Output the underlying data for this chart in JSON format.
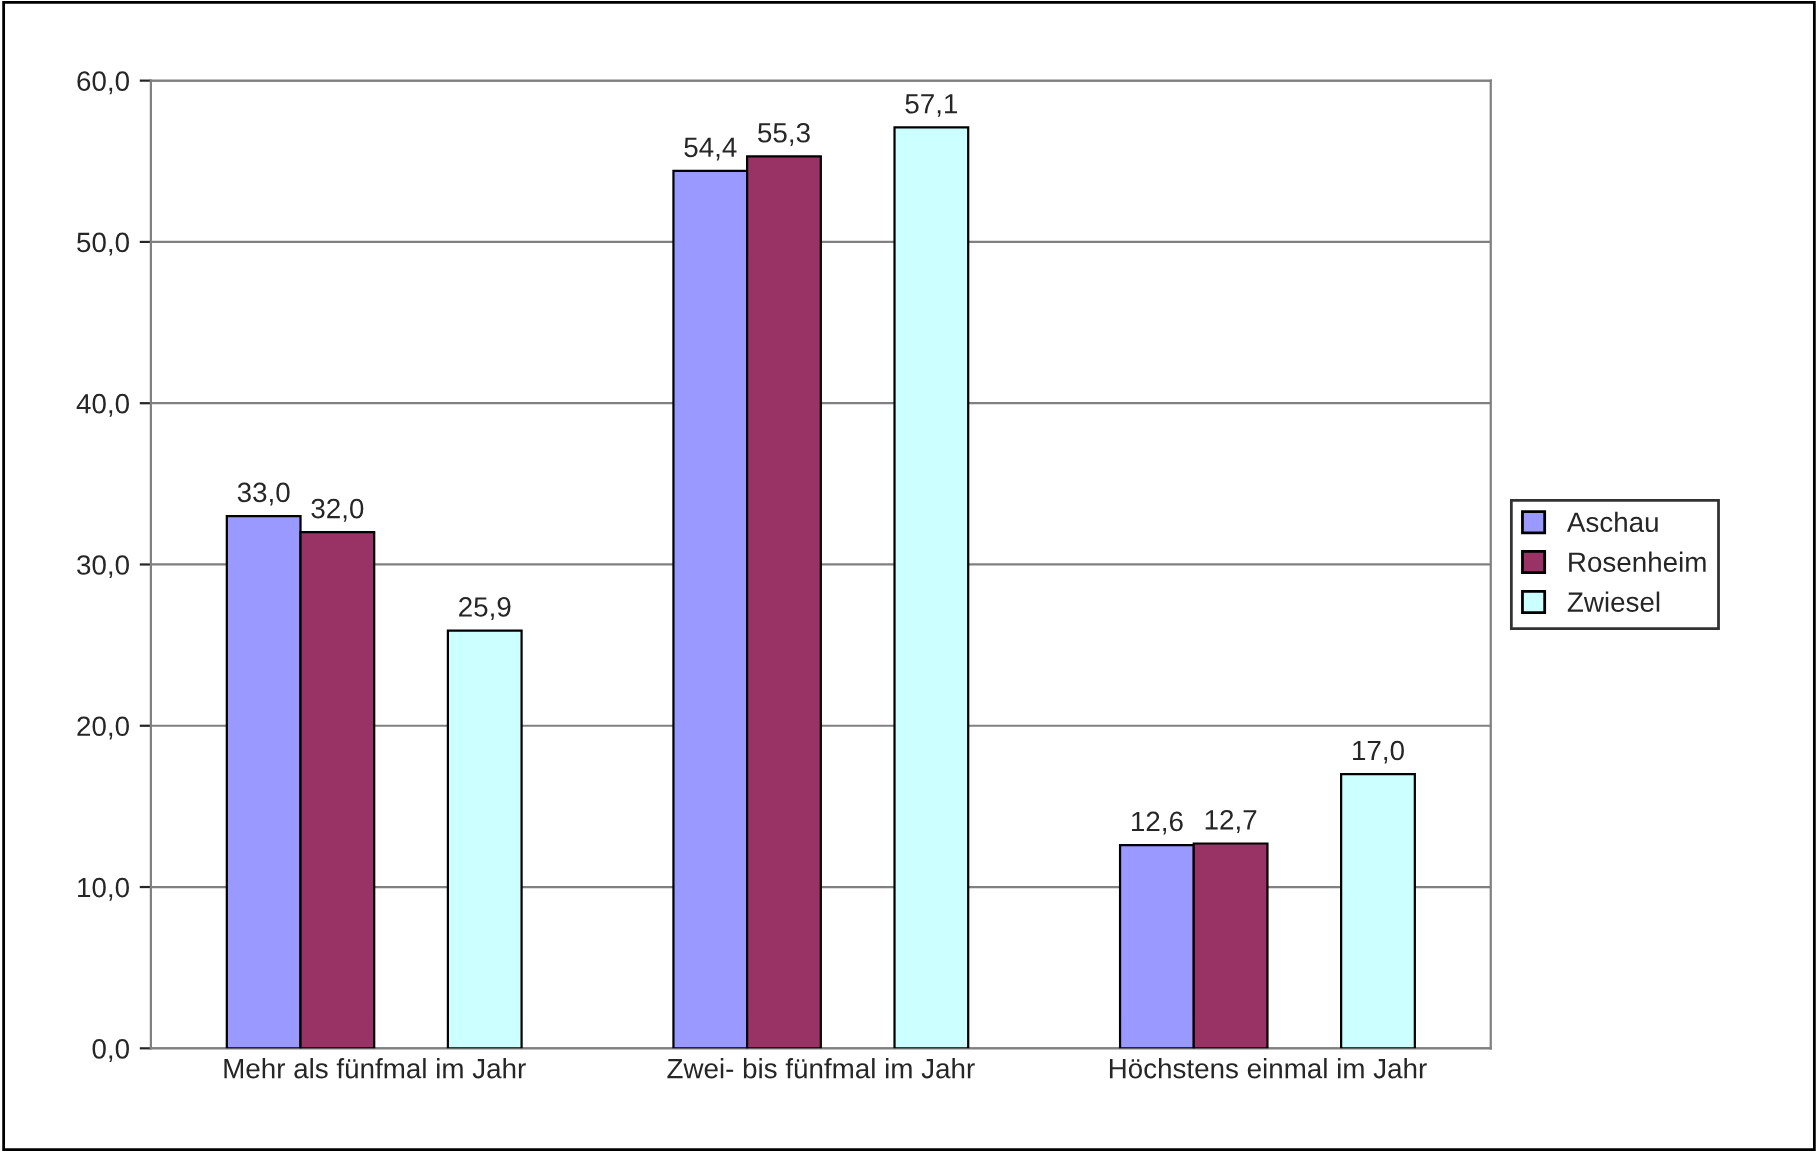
{
  "chart_data": {
    "type": "bar",
    "categories": [
      "Mehr als fünfmal im Jahr",
      "Zwei- bis fünfmal im Jahr",
      "Höchstens einmal im Jahr"
    ],
    "series": [
      {
        "name": "Aschau",
        "color": "#9999ff",
        "values": [
          33.0,
          54.4,
          12.6
        ],
        "value_labels": [
          "33,0",
          "54,4",
          "12,6"
        ]
      },
      {
        "name": "Rosenheim",
        "color": "#993366",
        "values": [
          32.0,
          55.3,
          12.7
        ],
        "value_labels": [
          "32,0",
          "55,3",
          "12,7"
        ]
      },
      {
        "values": [
          null,
          null,
          null
        ]
      },
      {
        "name": "Zwiesel",
        "color": "#ccffff",
        "values": [
          25.9,
          57.1,
          17.0
        ],
        "value_labels": [
          "25,9",
          "57,1",
          "17,0"
        ]
      }
    ],
    "ylim": [
      0,
      60
    ],
    "yticks": [
      {
        "value": 0,
        "label": "0,0"
      },
      {
        "value": 10,
        "label": "10,0"
      },
      {
        "value": 20,
        "label": "20,0"
      },
      {
        "value": 30,
        "label": "30,0"
      },
      {
        "value": 40,
        "label": "40,0"
      },
      {
        "value": 50,
        "label": "50,0"
      },
      {
        "value": 60,
        "label": "60,0"
      }
    ],
    "grid": "y",
    "legend": "right"
  }
}
